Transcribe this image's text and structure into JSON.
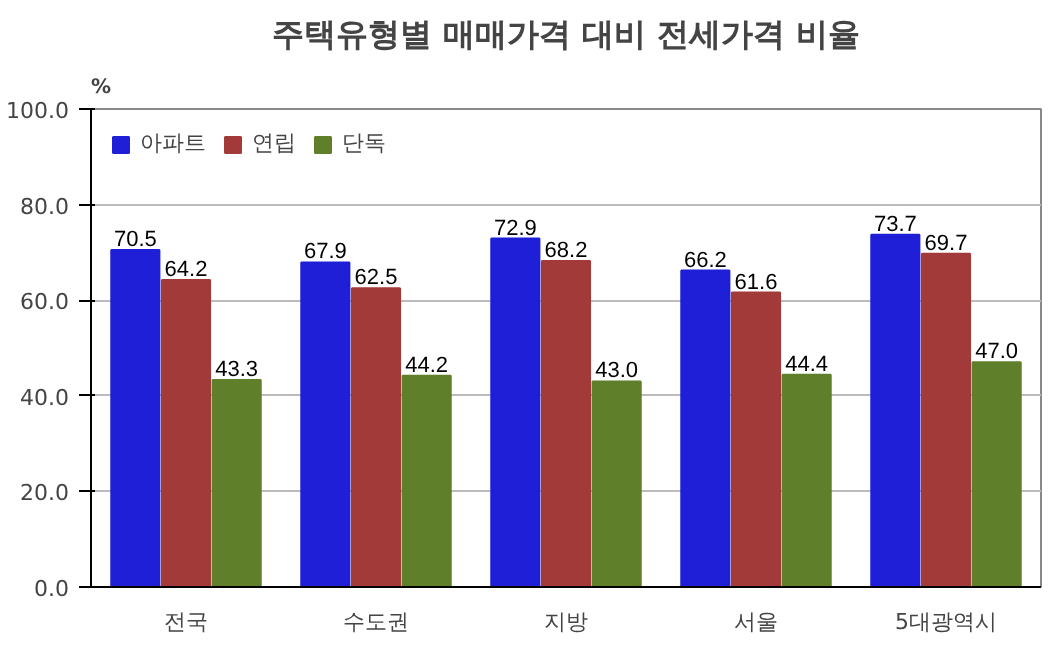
{
  "chart_data": {
    "type": "bar",
    "title": "주택유형별 매매가격 대비 전세가격 비율",
    "ylabel": "%",
    "categories": [
      "전국",
      "수도권",
      "지방",
      "서울",
      "5대광역시"
    ],
    "series": [
      {
        "name": "아파트",
        "color": "#1f1fd8",
        "values": [
          70.5,
          67.9,
          72.9,
          66.2,
          73.7
        ],
        "value_labels": [
          "70.5",
          "67.9",
          "72.9",
          "66.2",
          "73.7"
        ]
      },
      {
        "name": "연립",
        "color": "#a33a3a",
        "values": [
          64.2,
          62.5,
          68.2,
          61.6,
          69.7
        ],
        "value_labels": [
          "64.2",
          "62.5",
          "68.2",
          "61.6",
          "69.7"
        ]
      },
      {
        "name": "단독",
        "color": "#5f7f2a",
        "values": [
          43.3,
          44.2,
          43.0,
          44.4,
          47.0
        ],
        "value_labels": [
          "43.3",
          "44.2",
          "43.0",
          "44.4",
          "47.0"
        ]
      }
    ],
    "ylim": [
      0,
      100
    ],
    "yticks": [
      {
        "value": 0,
        "label": "0.0"
      },
      {
        "value": 20,
        "label": "20.0"
      },
      {
        "value": 40,
        "label": "40.0"
      },
      {
        "value": 60,
        "label": "60.0"
      },
      {
        "value": 80,
        "label": "80.0"
      },
      {
        "value": 100,
        "label": "100.0"
      }
    ],
    "grid": "y",
    "legend": "top left"
  }
}
